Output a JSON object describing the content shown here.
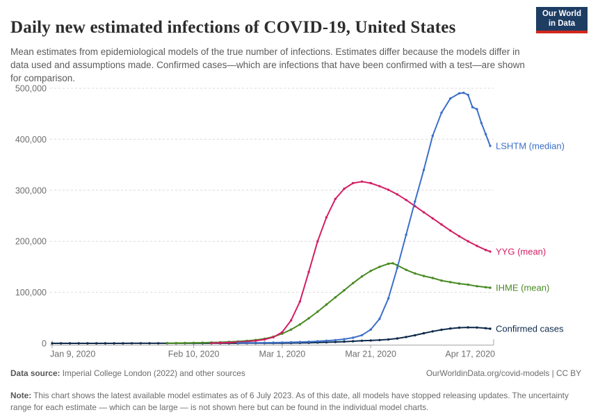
{
  "header": {
    "title": "Daily new estimated infections of COVID-19, United States",
    "subtitle": "Mean estimates from epidemiological models of the true number of infections. Estimates differ because the models differ in data used and assumptions made. Confirmed cases—which are infections that have been confirmed with a test—are shown for comparison.",
    "logo": {
      "line1": "Our World",
      "line2": "in Data",
      "bg": "#1d3d63",
      "accent": "#d1271d"
    }
  },
  "chart_data": {
    "type": "line",
    "title": "Daily new estimated infections of COVID-19, United States",
    "xlabel": "",
    "ylabel": "",
    "grid": "dashed-horizontal",
    "legend_position": "right-of-line-ends",
    "x_axis": {
      "unit": "days since Jan 9, 2020",
      "range_days": [
        0,
        99
      ],
      "ticks": [
        {
          "day": 0,
          "label": "Jan 9, 2020"
        },
        {
          "day": 32,
          "label": "Feb 10, 2020"
        },
        {
          "day": 52,
          "label": "Mar 1, 2020"
        },
        {
          "day": 72,
          "label": "Mar 21, 2020"
        },
        {
          "day": 99,
          "label": "Apr 17, 2020"
        }
      ]
    },
    "y_axis": {
      "range": [
        0,
        500000
      ],
      "ticks": [
        {
          "value": 0,
          "label": "0"
        },
        {
          "value": 100000,
          "label": "100,000"
        },
        {
          "value": 200000,
          "label": "200,000"
        },
        {
          "value": 300000,
          "label": "300,000"
        },
        {
          "value": 400000,
          "label": "400,000"
        },
        {
          "value": 500000,
          "label": "500,000"
        }
      ]
    },
    "series": [
      {
        "name": "Confirmed cases",
        "color": "#0e2a4a",
        "points": [
          [
            0,
            50
          ],
          [
            2,
            50
          ],
          [
            4,
            50
          ],
          [
            6,
            50
          ],
          [
            8,
            50
          ],
          [
            10,
            50
          ],
          [
            12,
            50
          ],
          [
            14,
            60
          ],
          [
            16,
            60
          ],
          [
            18,
            70
          ],
          [
            20,
            70
          ],
          [
            22,
            80
          ],
          [
            24,
            80
          ],
          [
            26,
            90
          ],
          [
            28,
            100
          ],
          [
            30,
            100
          ],
          [
            32,
            110
          ],
          [
            34,
            120
          ],
          [
            36,
            130
          ],
          [
            38,
            150
          ],
          [
            40,
            170
          ],
          [
            42,
            200
          ],
          [
            44,
            230
          ],
          [
            46,
            270
          ],
          [
            48,
            320
          ],
          [
            50,
            380
          ],
          [
            52,
            450
          ],
          [
            54,
            600
          ],
          [
            56,
            800
          ],
          [
            58,
            1100
          ],
          [
            60,
            1500
          ],
          [
            62,
            2000
          ],
          [
            64,
            2600
          ],
          [
            66,
            3300
          ],
          [
            68,
            4100
          ],
          [
            70,
            5000
          ],
          [
            72,
            5600
          ],
          [
            74,
            6400
          ],
          [
            76,
            7600
          ],
          [
            78,
            9600
          ],
          [
            80,
            12400
          ],
          [
            82,
            15800
          ],
          [
            84,
            19800
          ],
          [
            86,
            23400
          ],
          [
            88,
            26600
          ],
          [
            90,
            29000
          ],
          [
            92,
            30600
          ],
          [
            94,
            31200
          ],
          [
            96,
            30900
          ],
          [
            98,
            29500
          ],
          [
            99,
            28600
          ]
        ]
      },
      {
        "name": "IHME (mean)",
        "color": "#478a21",
        "points": [
          [
            26,
            300
          ],
          [
            28,
            450
          ],
          [
            30,
            650
          ],
          [
            32,
            900
          ],
          [
            34,
            1200
          ],
          [
            36,
            1600
          ],
          [
            38,
            2100
          ],
          [
            40,
            2800
          ],
          [
            42,
            3700
          ],
          [
            44,
            4900
          ],
          [
            46,
            6500
          ],
          [
            48,
            9000
          ],
          [
            50,
            13000
          ],
          [
            52,
            19000
          ],
          [
            54,
            27000
          ],
          [
            56,
            37000
          ],
          [
            58,
            49000
          ],
          [
            60,
            62000
          ],
          [
            62,
            76000
          ],
          [
            64,
            90000
          ],
          [
            66,
            104000
          ],
          [
            68,
            118000
          ],
          [
            70,
            131000
          ],
          [
            72,
            142000
          ],
          [
            74,
            150000
          ],
          [
            76,
            156000
          ],
          [
            77,
            157000
          ],
          [
            78,
            153000
          ],
          [
            80,
            144000
          ],
          [
            82,
            137000
          ],
          [
            84,
            132000
          ],
          [
            86,
            128000
          ],
          [
            88,
            123000
          ],
          [
            90,
            120000
          ],
          [
            92,
            117000
          ],
          [
            94,
            115000
          ],
          [
            96,
            112000
          ],
          [
            98,
            110000
          ],
          [
            99,
            109000
          ]
        ]
      },
      {
        "name": "YYG (mean)",
        "color": "#d21e63",
        "points": [
          [
            36,
            500
          ],
          [
            38,
            900
          ],
          [
            40,
            1500
          ],
          [
            42,
            2300
          ],
          [
            44,
            3400
          ],
          [
            46,
            5000
          ],
          [
            48,
            7500
          ],
          [
            50,
            12000
          ],
          [
            52,
            22000
          ],
          [
            54,
            45000
          ],
          [
            56,
            82000
          ],
          [
            58,
            140000
          ],
          [
            60,
            200000
          ],
          [
            62,
            247000
          ],
          [
            64,
            283000
          ],
          [
            66,
            303000
          ],
          [
            68,
            314000
          ],
          [
            70,
            317000
          ],
          [
            72,
            314000
          ],
          [
            74,
            308000
          ],
          [
            76,
            301000
          ],
          [
            78,
            292000
          ],
          [
            80,
            281000
          ],
          [
            82,
            269000
          ],
          [
            84,
            257000
          ],
          [
            86,
            245000
          ],
          [
            88,
            233000
          ],
          [
            90,
            221000
          ],
          [
            92,
            210000
          ],
          [
            94,
            200000
          ],
          [
            96,
            191000
          ],
          [
            98,
            183000
          ],
          [
            99,
            180000
          ]
        ]
      },
      {
        "name": "LSHTM (median)",
        "color": "#3b6fc9",
        "points": [
          [
            42,
            800
          ],
          [
            44,
            900
          ],
          [
            46,
            1000
          ],
          [
            48,
            1200
          ],
          [
            50,
            1400
          ],
          [
            52,
            1700
          ],
          [
            54,
            2100
          ],
          [
            56,
            2600
          ],
          [
            58,
            3200
          ],
          [
            60,
            4000
          ],
          [
            62,
            5000
          ],
          [
            64,
            6300
          ],
          [
            66,
            8200
          ],
          [
            68,
            11000
          ],
          [
            70,
            16000
          ],
          [
            72,
            27000
          ],
          [
            74,
            48000
          ],
          [
            76,
            88000
          ],
          [
            78,
            148000
          ],
          [
            80,
            213000
          ],
          [
            82,
            278000
          ],
          [
            84,
            340000
          ],
          [
            86,
            407000
          ],
          [
            88,
            452000
          ],
          [
            90,
            480000
          ],
          [
            92,
            490000
          ],
          [
            93,
            491000
          ],
          [
            94,
            487000
          ],
          [
            95,
            463000
          ],
          [
            96,
            459000
          ],
          [
            97,
            432000
          ],
          [
            98,
            410000
          ],
          [
            99,
            387000
          ]
        ]
      }
    ]
  },
  "footer": {
    "datasource_label": "Data source:",
    "datasource_text": " Imperial College London (2022) and other sources",
    "link": "OurWorldinData.org/covid-models | CC BY",
    "note_label": "Note:",
    "note_text": " This chart shows the latest available model estimates as of 6 July 2023. As of this date, all models have stopped releasing updates. The uncertainty range for each estimate — which can be large — is not shown here but can be found in the individual model charts."
  }
}
